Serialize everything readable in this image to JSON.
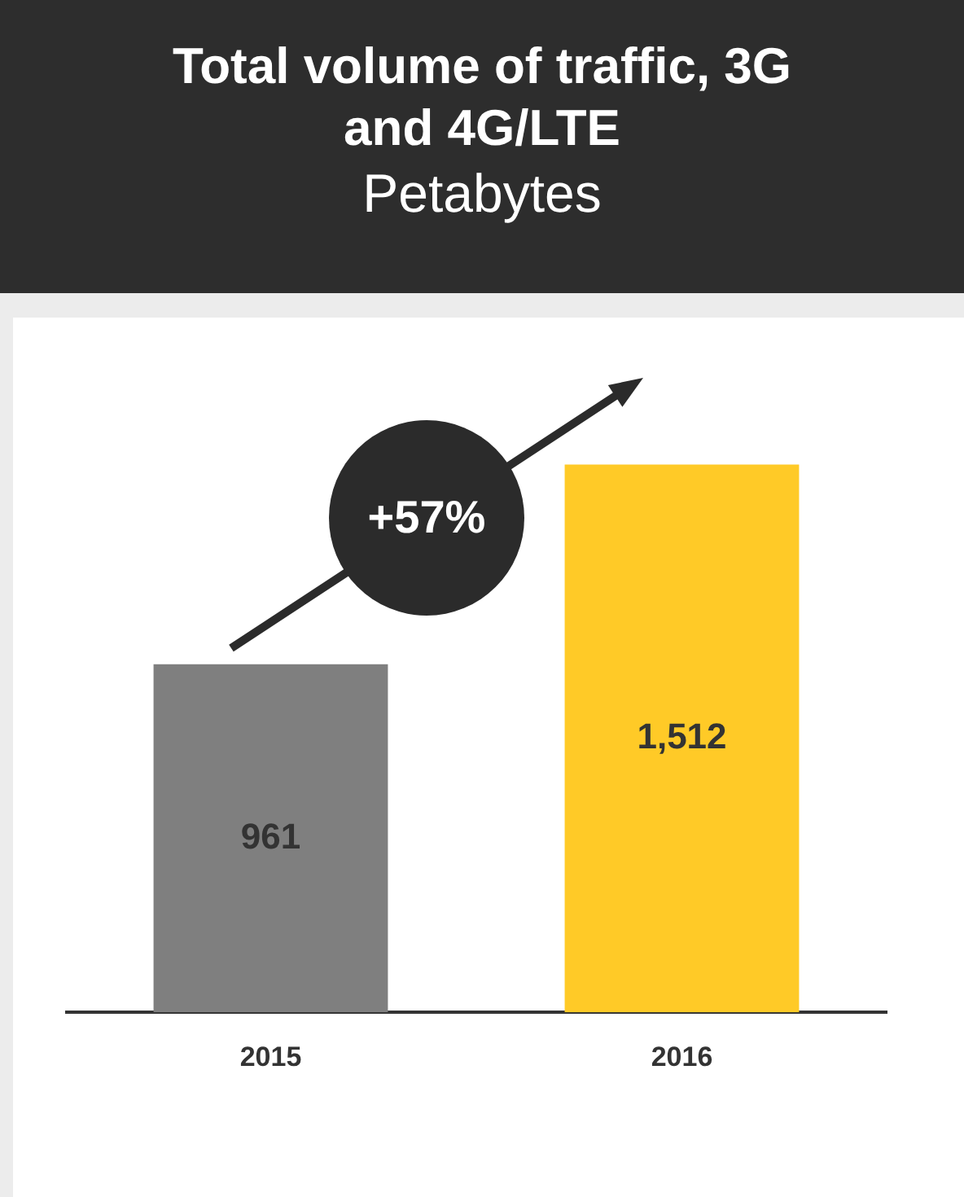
{
  "chart_data": {
    "type": "bar",
    "title": "Total volume of traffic, 3G and 4G/LTE",
    "subtitle": "Petabytes",
    "categories": [
      "2015",
      "2016"
    ],
    "values": [
      961,
      1512
    ],
    "colors": [
      "#7f7f7f",
      "#ffca27"
    ],
    "data_labels": true,
    "value_labels": [
      "961",
      "1,512"
    ],
    "grid": false,
    "legend": false,
    "annotations": [
      "+57%"
    ]
  }
}
